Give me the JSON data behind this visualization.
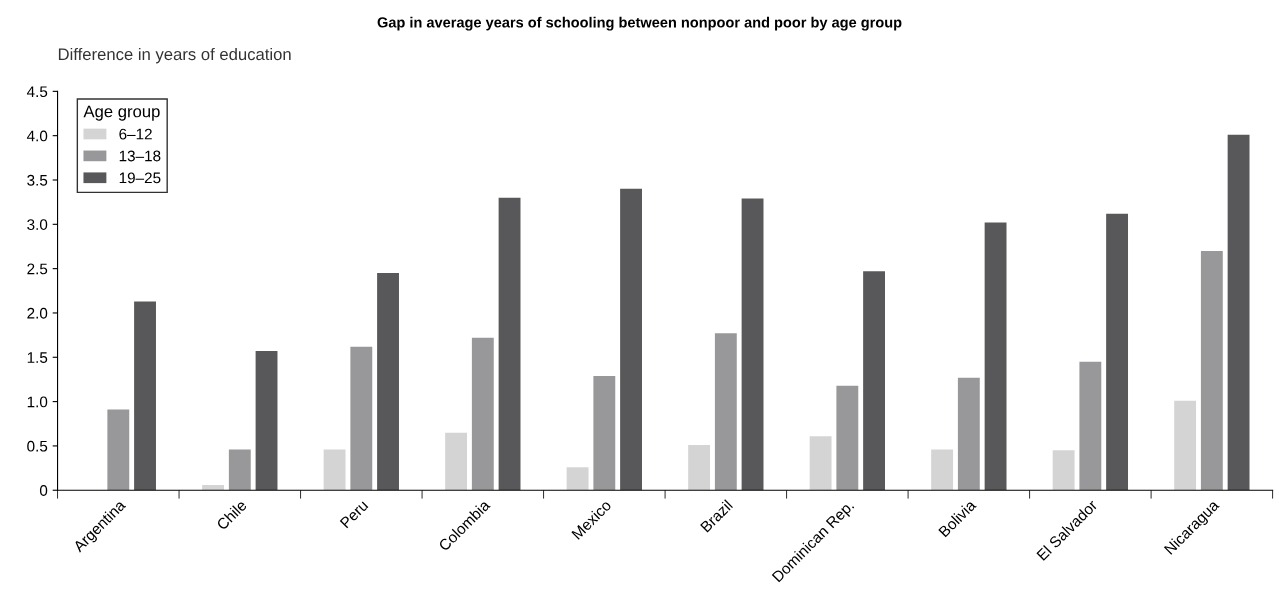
{
  "chart_data": {
    "type": "bar",
    "title": "Gap in average years of schooling between nonpoor and poor by age group",
    "ylabel": "Difference in years of education",
    "legend_title": "Age group",
    "categories": [
      "Argentina",
      "Chile",
      "Peru",
      "Colombia",
      "Mexico",
      "Brazil",
      "Dominican Rep.",
      "Bolivia",
      "El Salvador",
      "Nicaragua"
    ],
    "series": [
      {
        "name": "6–12",
        "color": "#d4d4d4",
        "values": [
          0,
          0.06,
          0.46,
          0.65,
          0.26,
          0.51,
          0.61,
          0.46,
          0.45,
          1.01
        ]
      },
      {
        "name": "13–18",
        "color": "#98989a",
        "values": [
          0.91,
          0.46,
          1.62,
          1.72,
          1.29,
          1.77,
          1.18,
          1.27,
          1.45,
          2.7
        ]
      },
      {
        "name": "19–25",
        "color": "#58585a",
        "values": [
          2.13,
          1.57,
          2.45,
          3.3,
          3.4,
          3.29,
          2.47,
          3.02,
          3.12,
          4.01
        ]
      }
    ],
    "ylim": [
      0,
      4.5
    ],
    "yticks": [
      0,
      0.5,
      {
        "value": 1,
        "label": "1.0"
      },
      1.5,
      {
        "value": 2,
        "label": "2.0"
      },
      2.5,
      {
        "value": 3,
        "label": "3.0"
      },
      3.5,
      {
        "value": 4,
        "label": "4.0"
      },
      4.5
    ],
    "grid": false,
    "legend": "top left"
  }
}
